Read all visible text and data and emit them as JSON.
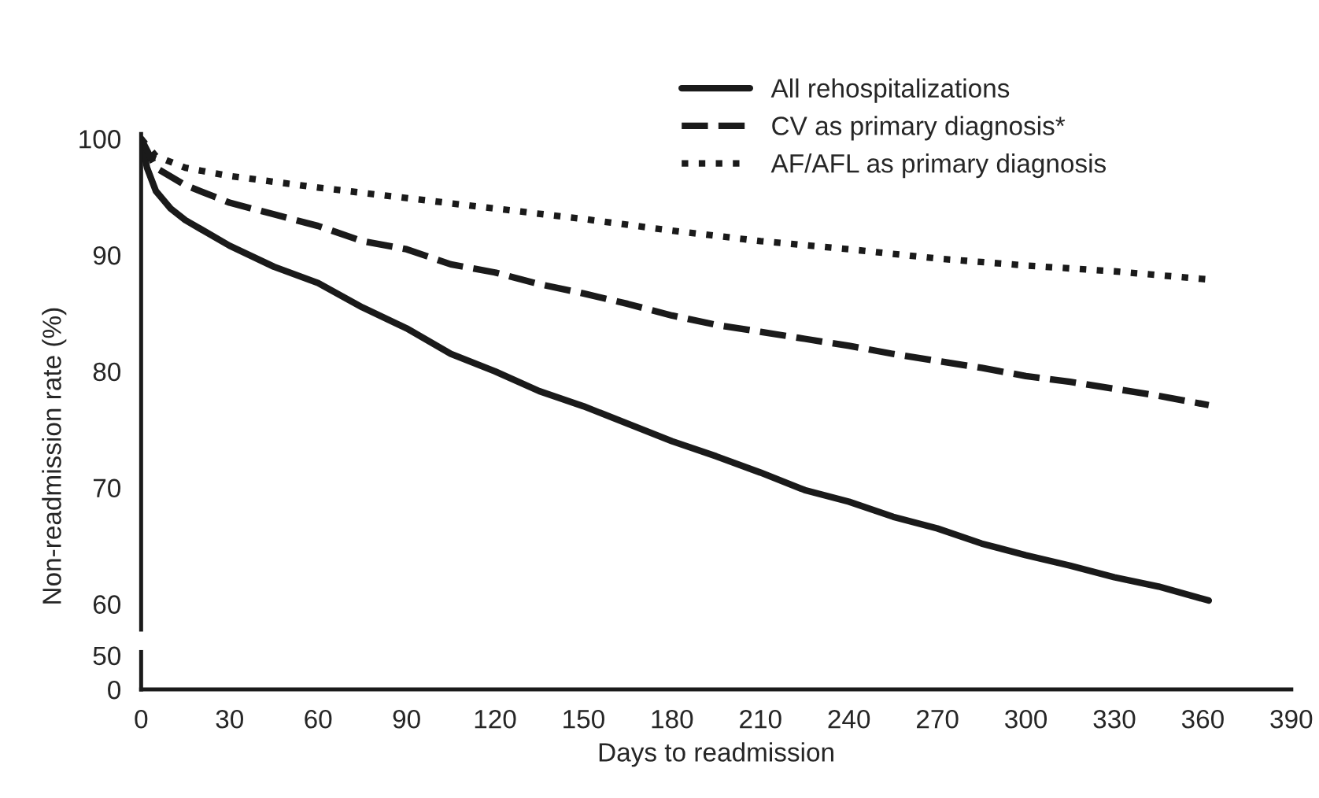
{
  "chart_data": [
    {
      "type": "line",
      "ylabel": "Non-readmission rate (%)",
      "xlim": [
        0,
        390
      ],
      "ylim": [
        57.8,
        100.4
      ],
      "yticks": [
        60,
        70,
        80,
        90,
        100
      ],
      "tick_labels": "y",
      "legend": "top right",
      "grid": false,
      "marker": "none",
      "series": [
        {
          "name": "All rehospitalizations",
          "color": "#1a1a1a",
          "line_style": "solid",
          "x": [
            0,
            2,
            5,
            10,
            15,
            30,
            45,
            60,
            75,
            90,
            105,
            120,
            135,
            150,
            165,
            180,
            195,
            210,
            225,
            240,
            255,
            270,
            285,
            300,
            315,
            330,
            345,
            362
          ],
          "values": [
            100,
            97.5,
            95.5,
            94,
            93,
            90.8,
            89,
            87.6,
            85.5,
            83.7,
            81.5,
            80,
            78.3,
            77,
            75.5,
            74,
            72.7,
            71.3,
            69.8,
            68.8,
            67.5,
            66.5,
            65.2,
            64.2,
            63.3,
            62.3,
            61.5,
            60.3
          ]
        },
        {
          "name": "CV as primary diagnosis*",
          "color": "#1a1a1a",
          "line_style": "dashed",
          "x": [
            0,
            5,
            15,
            30,
            45,
            60,
            75,
            90,
            105,
            120,
            135,
            150,
            165,
            180,
            195,
            210,
            225,
            240,
            255,
            270,
            285,
            300,
            315,
            330,
            345,
            362
          ],
          "values": [
            100,
            97.5,
            96,
            94.5,
            93.5,
            92.5,
            91.2,
            90.5,
            89.2,
            88.5,
            87.5,
            86.7,
            85.8,
            84.8,
            84,
            83.4,
            82.8,
            82.2,
            81.5,
            80.9,
            80.3,
            79.6,
            79.1,
            78.5,
            77.9,
            77.1
          ]
        },
        {
          "name": "AF/AFL as primary diagnosis",
          "color": "#1a1a1a",
          "line_style": "dotted",
          "x": [
            0,
            5,
            15,
            30,
            60,
            90,
            120,
            150,
            180,
            210,
            240,
            270,
            300,
            330,
            362
          ],
          "values": [
            100,
            98.5,
            97.5,
            96.8,
            95.8,
            94.9,
            94,
            93.1,
            92.1,
            91.2,
            90.5,
            89.7,
            89.1,
            88.6,
            87.9
          ]
        }
      ]
    },
    {
      "type": "line",
      "xlabel": "Days to readmission",
      "xlim": [
        0,
        390
      ],
      "xticks": [
        0,
        30,
        60,
        90,
        120,
        150,
        180,
        210,
        240,
        270,
        300,
        330,
        360,
        390
      ],
      "ylim": [
        0,
        55
      ],
      "yticks": [
        0,
        50
      ],
      "grid": false
    }
  ]
}
